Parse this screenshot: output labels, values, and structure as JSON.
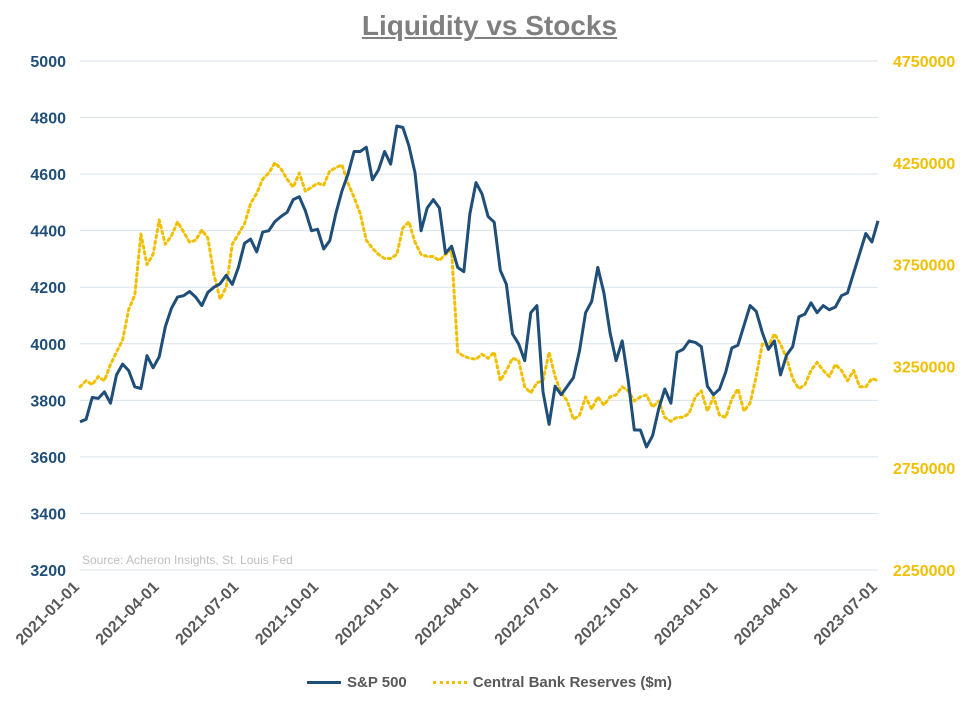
{
  "chart_data": {
    "type": "line",
    "title": "Liquidity vs Stocks",
    "source": "Source: Acheron Insights, St. Louis Fed",
    "x_ticks": [
      "2021-01-01",
      "2021-04-01",
      "2021-07-01",
      "2021-10-01",
      "2022-01-01",
      "2022-04-01",
      "2022-07-01",
      "2022-10-01",
      "2023-01-01",
      "2023-04-01",
      "2023-07-01"
    ],
    "y_left": {
      "min": 3200,
      "max": 5000,
      "ticks": [
        "3200",
        "3400",
        "3600",
        "3800",
        "4000",
        "4200",
        "4400",
        "4600",
        "4800",
        "5000"
      ]
    },
    "y_right": {
      "min": 2250000,
      "max": 4750000,
      "ticks": [
        "2250000",
        "2750000",
        "3250000",
        "3750000",
        "4250000",
        "4750000"
      ]
    },
    "grid": true,
    "legend_position": "bottom",
    "colors": {
      "sp500": "#1f4e79",
      "reserves": "#f0c000",
      "grid": "#d9e2ea"
    },
    "series": [
      {
        "name": "S&P 500",
        "axis": "left",
        "style": "solid",
        "x_weeks": [
          0,
          1,
          2,
          3,
          4,
          5,
          6,
          7,
          8,
          9,
          10,
          11,
          12,
          13,
          14,
          15,
          16,
          17,
          18,
          19,
          20,
          21,
          22,
          23,
          24,
          25,
          26,
          27,
          28,
          29,
          30,
          31,
          32,
          33,
          34,
          35,
          36,
          37,
          38,
          39,
          40,
          41,
          42,
          43,
          44,
          45,
          46,
          47,
          48,
          49,
          50,
          51,
          52,
          53,
          54,
          55,
          56,
          57,
          58,
          59,
          60,
          61,
          62,
          63,
          64,
          65,
          66,
          67,
          68,
          69,
          70,
          71,
          72,
          73,
          74,
          75,
          76,
          77,
          78,
          79,
          80,
          81,
          82,
          83,
          84,
          85,
          86,
          87,
          88,
          89,
          90,
          91,
          92,
          93,
          94,
          95,
          96,
          97,
          98,
          99,
          100,
          101,
          102,
          103,
          104,
          105,
          106,
          107,
          108,
          109,
          110,
          111,
          112,
          113,
          114,
          115,
          116,
          117,
          118,
          119,
          120,
          121,
          122,
          123,
          124,
          125,
          126,
          127,
          128,
          129,
          130,
          131
        ],
        "values": [
          3724,
          3733,
          3810,
          3807,
          3830,
          3790,
          3890,
          3928,
          3905,
          3848,
          3842,
          3958,
          3915,
          3954,
          4060,
          4125,
          4165,
          4170,
          4185,
          4165,
          4135,
          4182,
          4200,
          4212,
          4242,
          4210,
          4270,
          4355,
          4370,
          4325,
          4395,
          4400,
          4432,
          4450,
          4465,
          4510,
          4520,
          4470,
          4400,
          4405,
          4335,
          4365,
          4460,
          4540,
          4600,
          4680,
          4680,
          4695,
          4580,
          4615,
          4680,
          4635,
          4770,
          4765,
          4700,
          4605,
          4400,
          4480,
          4510,
          4480,
          4320,
          4345,
          4270,
          4255,
          4460,
          4570,
          4530,
          4450,
          4430,
          4260,
          4210,
          4035,
          4000,
          3940,
          4110,
          4135,
          3830,
          3715,
          3850,
          3820,
          3850,
          3880,
          3975,
          4110,
          4150,
          4270,
          4180,
          4040,
          3940,
          4010,
          3870,
          3695,
          3695,
          3635,
          3675,
          3770,
          3840,
          3790,
          3970,
          3980,
          4010,
          4005,
          3990,
          3850,
          3820,
          3840,
          3900,
          3985,
          3995,
          4065,
          4135,
          4115,
          4040,
          3980,
          4010,
          3890,
          3960,
          3990,
          4095,
          4105,
          4145,
          4110,
          4135,
          4120,
          4130,
          4170,
          4180,
          4250,
          4320,
          4390,
          4360,
          4435
        ]
      },
      {
        "name": "Central Bank Reserves ($m)",
        "axis": "right",
        "style": "dotted",
        "x_weeks": [
          0,
          1,
          2,
          3,
          4,
          5,
          6,
          7,
          8,
          9,
          10,
          11,
          12,
          13,
          14,
          15,
          16,
          17,
          18,
          19,
          20,
          21,
          22,
          23,
          24,
          25,
          26,
          27,
          28,
          29,
          30,
          31,
          32,
          33,
          34,
          35,
          36,
          37,
          38,
          39,
          40,
          41,
          42,
          43,
          44,
          45,
          46,
          47,
          48,
          49,
          50,
          51,
          52,
          53,
          54,
          55,
          56,
          57,
          58,
          59,
          60,
          61,
          62,
          63,
          64,
          65,
          66,
          67,
          68,
          69,
          70,
          71,
          72,
          73,
          74,
          75,
          76,
          77,
          78,
          79,
          80,
          81,
          82,
          83,
          84,
          85,
          86,
          87,
          88,
          89,
          90,
          91,
          92,
          93,
          94,
          95,
          96,
          97,
          98,
          99,
          100,
          101,
          102,
          103,
          104,
          105,
          106,
          107,
          108,
          109,
          110,
          111,
          112,
          113,
          114,
          115,
          116,
          117,
          118,
          119,
          120,
          121,
          122,
          123,
          124,
          125,
          126,
          127,
          128,
          129,
          130,
          131
        ],
        "values": [
          3150000,
          3180000,
          3160000,
          3200000,
          3180000,
          3260000,
          3320000,
          3380000,
          3530000,
          3600000,
          3900000,
          3750000,
          3800000,
          3970000,
          3850000,
          3890000,
          3960000,
          3910000,
          3860000,
          3870000,
          3920000,
          3880000,
          3700000,
          3580000,
          3640000,
          3850000,
          3900000,
          3950000,
          4050000,
          4100000,
          4170000,
          4200000,
          4250000,
          4220000,
          4170000,
          4130000,
          4200000,
          4110000,
          4130000,
          4150000,
          4140000,
          4210000,
          4225000,
          4240000,
          4150000,
          4080000,
          4000000,
          3870000,
          3830000,
          3800000,
          3780000,
          3780000,
          3800000,
          3930000,
          3960000,
          3860000,
          3800000,
          3790000,
          3790000,
          3770000,
          3800000,
          3820000,
          3320000,
          3300000,
          3290000,
          3285000,
          3310000,
          3290000,
          3320000,
          3180000,
          3230000,
          3290000,
          3280000,
          3150000,
          3120000,
          3170000,
          3180000,
          3320000,
          3200000,
          3120000,
          3080000,
          2990000,
          3010000,
          3100000,
          3040000,
          3100000,
          3060000,
          3100000,
          3110000,
          3150000,
          3130000,
          3080000,
          3100000,
          3110000,
          3050000,
          3080000,
          3000000,
          2980000,
          3000000,
          3000000,
          3020000,
          3100000,
          3130000,
          3030000,
          3100000,
          3010000,
          3000000,
          3090000,
          3140000,
          3030000,
          3070000,
          3200000,
          3360000,
          3350000,
          3410000,
          3360000,
          3290000,
          3190000,
          3140000,
          3160000,
          3230000,
          3270000,
          3230000,
          3200000,
          3260000,
          3230000,
          3180000,
          3230000,
          3150000,
          3150000,
          3190000,
          3180000
        ]
      }
    ]
  }
}
